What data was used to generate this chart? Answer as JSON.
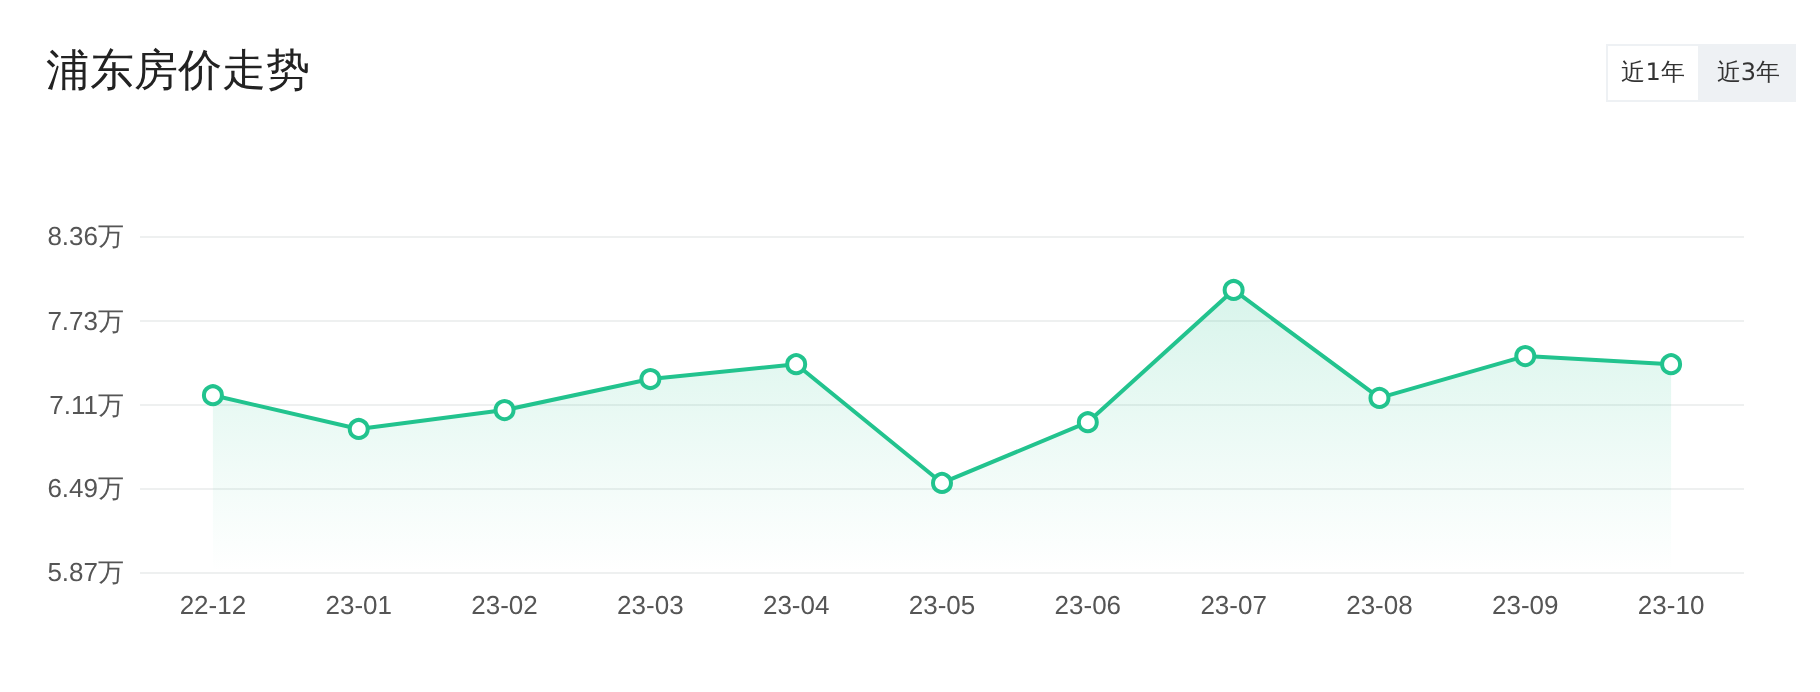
{
  "chart_data": {
    "type": "area",
    "title": "浦东房价走势",
    "annotations": [
      "近1年",
      "近3年"
    ],
    "categories": [
      "22-12",
      "23-01",
      "23-02",
      "23-03",
      "23-04",
      "23-05",
      "23-06",
      "23-07",
      "23-08",
      "23-09",
      "23-10"
    ],
    "values": [
      7.18,
      6.93,
      7.07,
      7.3,
      7.41,
      6.53,
      6.98,
      7.96,
      7.16,
      7.47,
      7.41
    ],
    "color": "#22c38e",
    "marker": "circle",
    "grid": "y",
    "ylim": [
      5.87,
      8.36
    ],
    "yticks": [
      {
        "value": 5.87,
        "label": "5.87万"
      },
      {
        "value": 6.49,
        "label": "6.49万"
      },
      {
        "value": 7.11,
        "label": "7.11万"
      },
      {
        "value": 7.73,
        "label": "7.73万"
      },
      {
        "value": 8.36,
        "label": "8.36万"
      }
    ]
  }
}
